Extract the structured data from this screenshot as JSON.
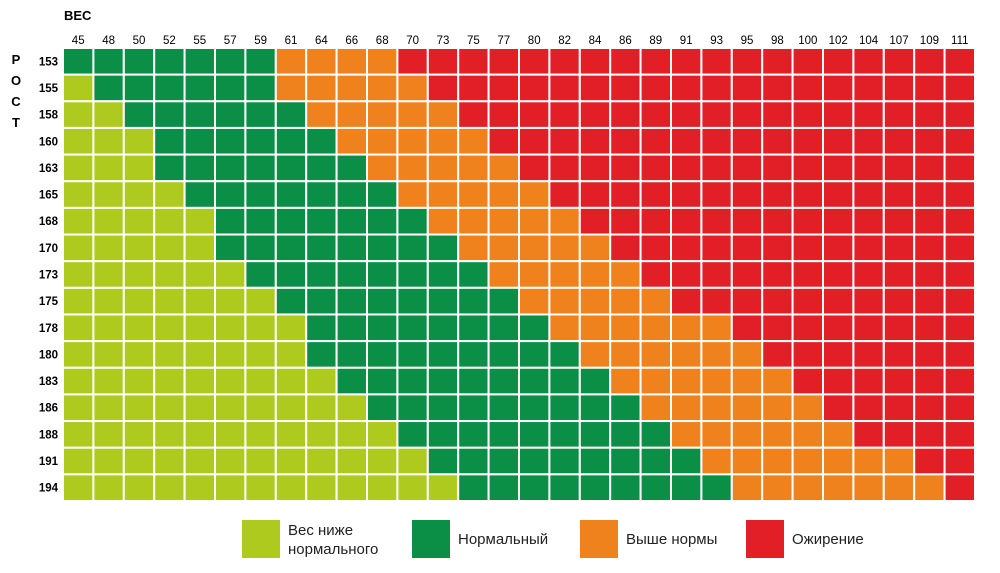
{
  "colors": {
    "underweight": "#afca1e",
    "normal": "#0b8e45",
    "overweight": "#f0821e",
    "obese": "#e21f27"
  },
  "chart_data": {
    "type": "heatmap",
    "title": "",
    "xlabel": "ВЕС",
    "ylabel": "РОСТ",
    "x": [
      "45",
      "48",
      "50",
      "52",
      "55",
      "57",
      "59",
      "61",
      "64",
      "66",
      "68",
      "70",
      "73",
      "75",
      "77",
      "80",
      "82",
      "84",
      "86",
      "89",
      "91",
      "93",
      "95",
      "98",
      "100",
      "102",
      "104",
      "107",
      "109",
      "111"
    ],
    "y": [
      "153",
      "155",
      "158",
      "160",
      "163",
      "165",
      "168",
      "170",
      "173",
      "175",
      "178",
      "180",
      "183",
      "186",
      "188",
      "191",
      "194"
    ],
    "categories": [
      "Вес ниже нормального",
      "Нормальный",
      "Выше нормы",
      "Ожирение"
    ],
    "cells": [
      [
        1,
        1,
        1,
        1,
        1,
        1,
        1,
        2,
        2,
        2,
        2,
        3,
        3,
        3,
        3,
        3,
        3,
        3,
        3,
        3,
        3,
        3,
        3,
        3,
        3,
        3,
        3,
        3,
        3,
        3
      ],
      [
        0,
        1,
        1,
        1,
        1,
        1,
        1,
        2,
        2,
        2,
        2,
        2,
        3,
        3,
        3,
        3,
        3,
        3,
        3,
        3,
        3,
        3,
        3,
        3,
        3,
        3,
        3,
        3,
        3,
        3
      ],
      [
        0,
        0,
        1,
        1,
        1,
        1,
        1,
        1,
        2,
        2,
        2,
        2,
        2,
        3,
        3,
        3,
        3,
        3,
        3,
        3,
        3,
        3,
        3,
        3,
        3,
        3,
        3,
        3,
        3,
        3
      ],
      [
        0,
        0,
        0,
        1,
        1,
        1,
        1,
        1,
        1,
        2,
        2,
        2,
        2,
        2,
        3,
        3,
        3,
        3,
        3,
        3,
        3,
        3,
        3,
        3,
        3,
        3,
        3,
        3,
        3,
        3
      ],
      [
        0,
        0,
        0,
        1,
        1,
        1,
        1,
        1,
        1,
        1,
        2,
        2,
        2,
        2,
        2,
        3,
        3,
        3,
        3,
        3,
        3,
        3,
        3,
        3,
        3,
        3,
        3,
        3,
        3,
        3
      ],
      [
        0,
        0,
        0,
        0,
        1,
        1,
        1,
        1,
        1,
        1,
        1,
        2,
        2,
        2,
        2,
        2,
        3,
        3,
        3,
        3,
        3,
        3,
        3,
        3,
        3,
        3,
        3,
        3,
        3,
        3
      ],
      [
        0,
        0,
        0,
        0,
        0,
        1,
        1,
        1,
        1,
        1,
        1,
        1,
        2,
        2,
        2,
        2,
        2,
        3,
        3,
        3,
        3,
        3,
        3,
        3,
        3,
        3,
        3,
        3,
        3,
        3
      ],
      [
        0,
        0,
        0,
        0,
        0,
        1,
        1,
        1,
        1,
        1,
        1,
        1,
        1,
        2,
        2,
        2,
        2,
        2,
        3,
        3,
        3,
        3,
        3,
        3,
        3,
        3,
        3,
        3,
        3,
        3
      ],
      [
        0,
        0,
        0,
        0,
        0,
        0,
        1,
        1,
        1,
        1,
        1,
        1,
        1,
        1,
        2,
        2,
        2,
        2,
        2,
        3,
        3,
        3,
        3,
        3,
        3,
        3,
        3,
        3,
        3,
        3
      ],
      [
        0,
        0,
        0,
        0,
        0,
        0,
        0,
        1,
        1,
        1,
        1,
        1,
        1,
        1,
        1,
        2,
        2,
        2,
        2,
        2,
        3,
        3,
        3,
        3,
        3,
        3,
        3,
        3,
        3,
        3
      ],
      [
        0,
        0,
        0,
        0,
        0,
        0,
        0,
        0,
        1,
        1,
        1,
        1,
        1,
        1,
        1,
        1,
        2,
        2,
        2,
        2,
        2,
        2,
        3,
        3,
        3,
        3,
        3,
        3,
        3,
        3
      ],
      [
        0,
        0,
        0,
        0,
        0,
        0,
        0,
        0,
        1,
        1,
        1,
        1,
        1,
        1,
        1,
        1,
        1,
        2,
        2,
        2,
        2,
        2,
        2,
        3,
        3,
        3,
        3,
        3,
        3,
        3
      ],
      [
        0,
        0,
        0,
        0,
        0,
        0,
        0,
        0,
        0,
        1,
        1,
        1,
        1,
        1,
        1,
        1,
        1,
        1,
        2,
        2,
        2,
        2,
        2,
        2,
        3,
        3,
        3,
        3,
        3,
        3
      ],
      [
        0,
        0,
        0,
        0,
        0,
        0,
        0,
        0,
        0,
        0,
        1,
        1,
        1,
        1,
        1,
        1,
        1,
        1,
        1,
        2,
        2,
        2,
        2,
        2,
        2,
        3,
        3,
        3,
        3,
        3
      ],
      [
        0,
        0,
        0,
        0,
        0,
        0,
        0,
        0,
        0,
        0,
        0,
        1,
        1,
        1,
        1,
        1,
        1,
        1,
        1,
        1,
        2,
        2,
        2,
        2,
        2,
        2,
        3,
        3,
        3,
        3
      ],
      [
        0,
        0,
        0,
        0,
        0,
        0,
        0,
        0,
        0,
        0,
        0,
        0,
        1,
        1,
        1,
        1,
        1,
        1,
        1,
        1,
        1,
        2,
        2,
        2,
        2,
        2,
        2,
        2,
        3,
        3
      ],
      [
        0,
        0,
        0,
        0,
        0,
        0,
        0,
        0,
        0,
        0,
        0,
        0,
        0,
        1,
        1,
        1,
        1,
        1,
        1,
        1,
        1,
        1,
        2,
        2,
        2,
        2,
        2,
        2,
        2,
        3
      ]
    ]
  },
  "legend": {
    "items": [
      {
        "lines": [
          "Вес ниже",
          "нормального"
        ],
        "category": "underweight"
      },
      {
        "lines": [
          "Нормальный"
        ],
        "category": "normal"
      },
      {
        "lines": [
          "Выше нормы"
        ],
        "category": "overweight"
      },
      {
        "lines": [
          "Ожирение"
        ],
        "category": "obese"
      }
    ]
  }
}
